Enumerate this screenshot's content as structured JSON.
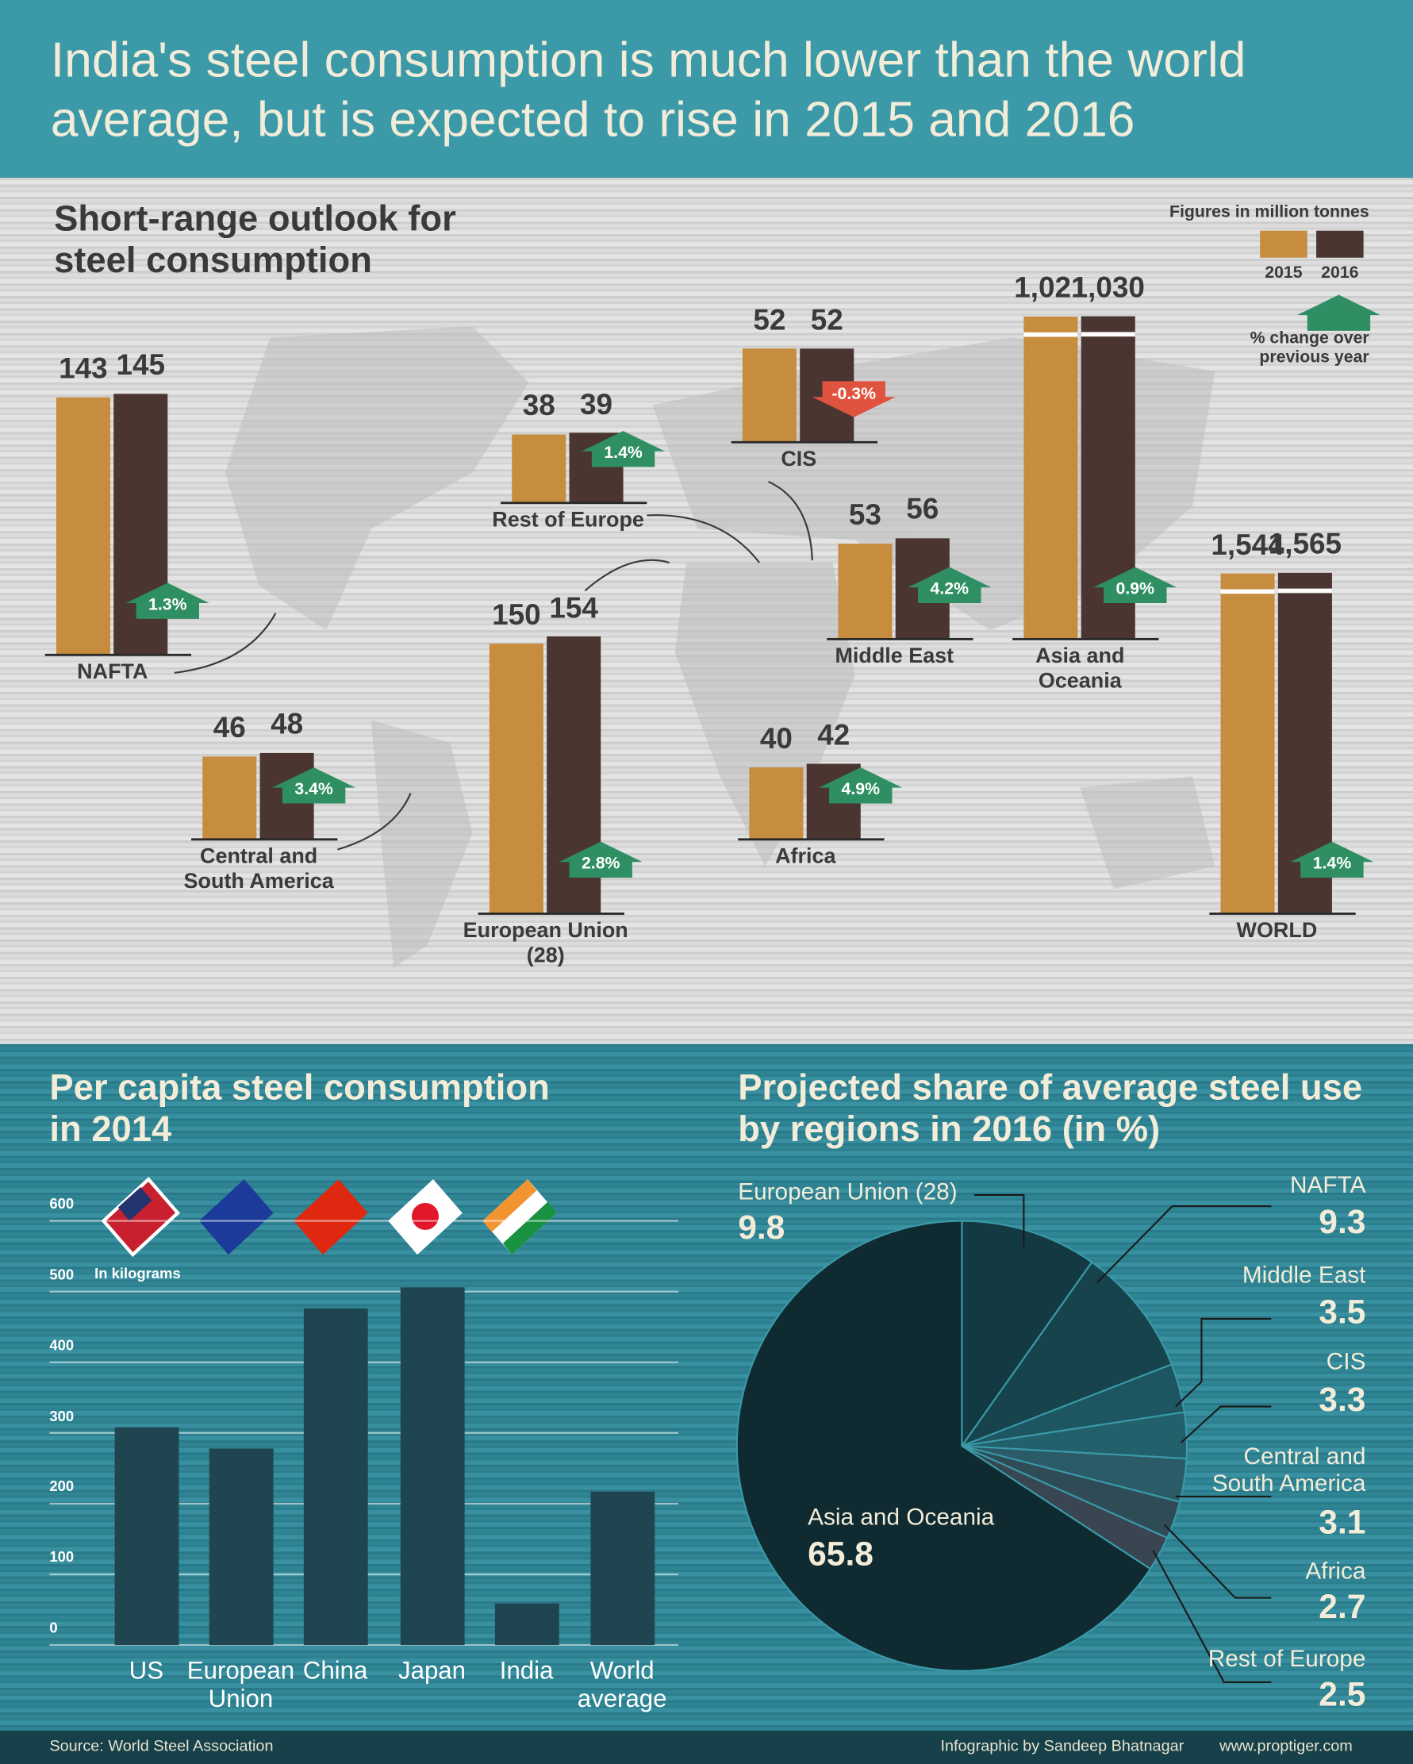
{
  "title": "India's steel consumption is much lower than the world average, but is expected to rise in 2015 and 2016",
  "chart_data": [
    {
      "type": "bar",
      "title": "Short-range outlook for steel consumption",
      "subtitle": "Figures in million tonnes",
      "categories": [
        "NAFTA",
        "Rest of Europe",
        "CIS",
        "Middle East",
        "Asia and Oceania",
        "WORLD",
        "Central and South America",
        "European Union (28)",
        "Africa"
      ],
      "series": [
        {
          "name": "2015",
          "color": "#c68d3e",
          "values": [
            143,
            38,
            52,
            53,
            1021,
            1544,
            46,
            150,
            40
          ],
          "value_labels": [
            "143",
            "38",
            "52",
            "53",
            "1,021",
            "1,544",
            "46",
            "150",
            "40"
          ]
        },
        {
          "name": "2016",
          "color": "#4a3530",
          "values": [
            145,
            39,
            52,
            56,
            1030,
            1565,
            48,
            154,
            42
          ],
          "value_labels": [
            "145",
            "39",
            "52",
            "56",
            "1,030",
            "1,565",
            "48",
            "154",
            "42"
          ]
        },
        {
          "name": "% change over previous year",
          "color": "#2f8f63",
          "negative_color": "#e0533f",
          "values": [
            1.3,
            1.4,
            -0.3,
            4.2,
            0.9,
            1.4,
            3.4,
            2.8,
            4.9
          ],
          "value_labels": [
            "1.3%",
            "1.4%",
            "-0.3%",
            "4.2%",
            "0.9%",
            "1.4%",
            "3.4%",
            "2.8%",
            "4.9%"
          ]
        }
      ]
    },
    {
      "type": "bar",
      "title": "Per capita steel consumption in 2014",
      "subtitle": "In kilograms",
      "categories": [
        "US",
        "European Union",
        "China",
        "Japan",
        "India",
        "World average"
      ],
      "values": [
        308,
        278,
        476,
        506,
        59,
        217
      ],
      "color": "#1f4650",
      "ylim": [
        0,
        600
      ],
      "yticks": [
        0,
        100,
        200,
        300,
        400,
        500,
        600
      ],
      "grid": true
    },
    {
      "type": "pie",
      "title": "Projected share of average steel use by regions in 2016 (in %)",
      "categories": [
        "European Union (28)",
        "NAFTA",
        "Middle East",
        "CIS",
        "Central and South America",
        "Africa",
        "Rest of Europe",
        "Asia and Oceania"
      ],
      "values": [
        9.8,
        9.3,
        3.5,
        3.3,
        3.1,
        2.7,
        2.5,
        65.8
      ],
      "colors": [
        "#133943",
        "#17434d",
        "#1d5561",
        "#22606c",
        "#2a5b67",
        "#2f4b56",
        "#394651",
        "#0f2a30"
      ]
    }
  ],
  "footer": {
    "source": "Source: World Steel Association",
    "credit": "Infographic by Sandeep Bhatnagar",
    "url": "www.proptiger.com"
  }
}
